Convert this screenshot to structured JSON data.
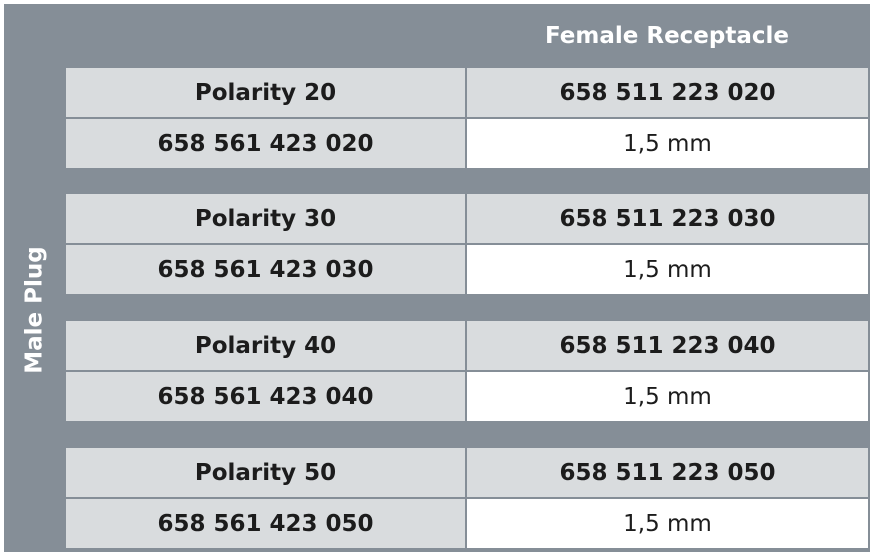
{
  "table": {
    "column_header": "Female Receptacle",
    "row_header": "Male Plug",
    "groups": [
      {
        "polarity": "Polarity 20",
        "female_part": "658 511 223 020",
        "male_part": "658 561 423 020",
        "thickness": "1,5 mm"
      },
      {
        "polarity": "Polarity 30",
        "female_part": "658 511 223 030",
        "male_part": "658 561 423 030",
        "thickness": "1,5 mm"
      },
      {
        "polarity": "Polarity 40",
        "female_part": "658 511 223 040",
        "male_part": "658 561 423 040",
        "thickness": "1,5 mm"
      },
      {
        "polarity": "Polarity 50",
        "female_part": "658 511 223 050",
        "male_part": "658 561 423 050",
        "thickness": "1,5 mm"
      }
    ]
  },
  "colors": {
    "frame": "#858e97",
    "header_cell": "#d9dcde",
    "value_cell": "#ffffff",
    "header_text": "#ffffff",
    "cell_text": "#1c1c1c"
  }
}
